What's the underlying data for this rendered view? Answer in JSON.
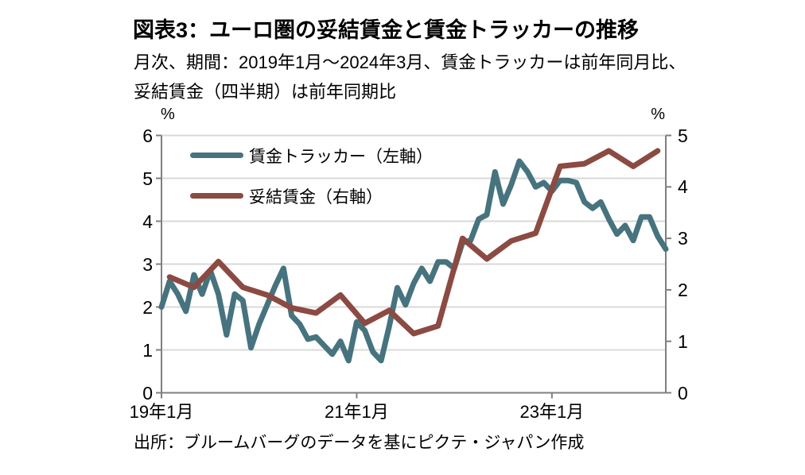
{
  "header": {
    "title": "図表3：ユーロ圏の妥結賃金と賃金トラッカーの推移",
    "subtitle1": "月次、期間：2019年1月～2024年3月、賃金トラッカーは前年同月比、",
    "subtitle2": "妥結賃金（四半期）は前年同期比"
  },
  "footer": {
    "source": "出所：ブルームバーグのデータを基にピクテ・ジャパン作成"
  },
  "colors": {
    "background": "#ffffff",
    "grid": "#d9d9d9",
    "axis": "#7f7f7f",
    "text": "#000000",
    "wage_tracker": "#46737e",
    "negotiated_wages": "#8b4a42"
  },
  "chart_data": {
    "type": "line",
    "title": "ユーロ圏の妥結賃金と賃金トラッカーの推移",
    "x_start": "2019-01",
    "x_end": "2024-03",
    "x_tick_labels": [
      "19年1月",
      "21年1月",
      "23年1月"
    ],
    "x_tick_months": [
      0,
      24,
      48
    ],
    "x_total_months": 62,
    "grid": "horizontal",
    "legend_position": "top-left-inside",
    "left_axis": {
      "unit_label": "%",
      "min": 0,
      "max": 6,
      "ticks": [
        0,
        1,
        2,
        3,
        4,
        5,
        6
      ]
    },
    "right_axis": {
      "unit_label": "%",
      "min": 0,
      "max": 5,
      "ticks": [
        0,
        1,
        2,
        3,
        4,
        5
      ]
    },
    "series": [
      {
        "name": "賃金トラッカー（左軸）",
        "axis": "left",
        "color": "#46737e",
        "frequency": "monthly",
        "values": [
          2.0,
          2.6,
          2.3,
          1.9,
          2.75,
          2.3,
          2.85,
          2.3,
          1.35,
          2.3,
          2.15,
          1.05,
          1.6,
          2.05,
          2.5,
          2.9,
          1.8,
          1.6,
          1.25,
          1.3,
          1.1,
          0.9,
          1.2,
          0.75,
          1.65,
          1.45,
          0.95,
          0.75,
          1.55,
          2.45,
          2.05,
          2.55,
          2.9,
          2.6,
          3.05,
          3.05,
          2.9,
          3.5,
          3.55,
          4.05,
          4.15,
          5.15,
          4.4,
          4.85,
          5.4,
          5.15,
          4.8,
          4.9,
          4.7,
          4.95,
          4.95,
          4.9,
          4.45,
          4.3,
          4.45,
          4.05,
          3.7,
          3.9,
          3.55,
          4.1,
          4.1,
          3.65,
          3.35
        ]
      },
      {
        "name": "妥結賃金（右軸）",
        "axis": "right",
        "color": "#8b4a42",
        "frequency": "quarterly",
        "months_from_start": [
          1,
          4,
          7,
          10,
          13,
          16,
          19,
          22,
          25,
          28,
          31,
          34,
          37,
          40,
          43,
          46,
          49,
          52,
          55,
          58,
          61
        ],
        "quarters": [
          "2019Q1",
          "2019Q2",
          "2019Q3",
          "2019Q4",
          "2020Q1",
          "2020Q2",
          "2020Q3",
          "2020Q4",
          "2021Q1",
          "2021Q2",
          "2021Q3",
          "2021Q4",
          "2022Q1",
          "2022Q2",
          "2022Q3",
          "2022Q4",
          "2023Q1",
          "2023Q2",
          "2023Q3",
          "2023Q4",
          "2024Q1"
        ],
        "values": [
          2.25,
          2.05,
          2.55,
          2.05,
          1.9,
          1.65,
          1.55,
          1.9,
          1.35,
          1.6,
          1.15,
          1.3,
          3.0,
          2.6,
          2.95,
          3.1,
          4.4,
          4.45,
          4.7,
          4.4,
          4.7
        ]
      }
    ]
  }
}
